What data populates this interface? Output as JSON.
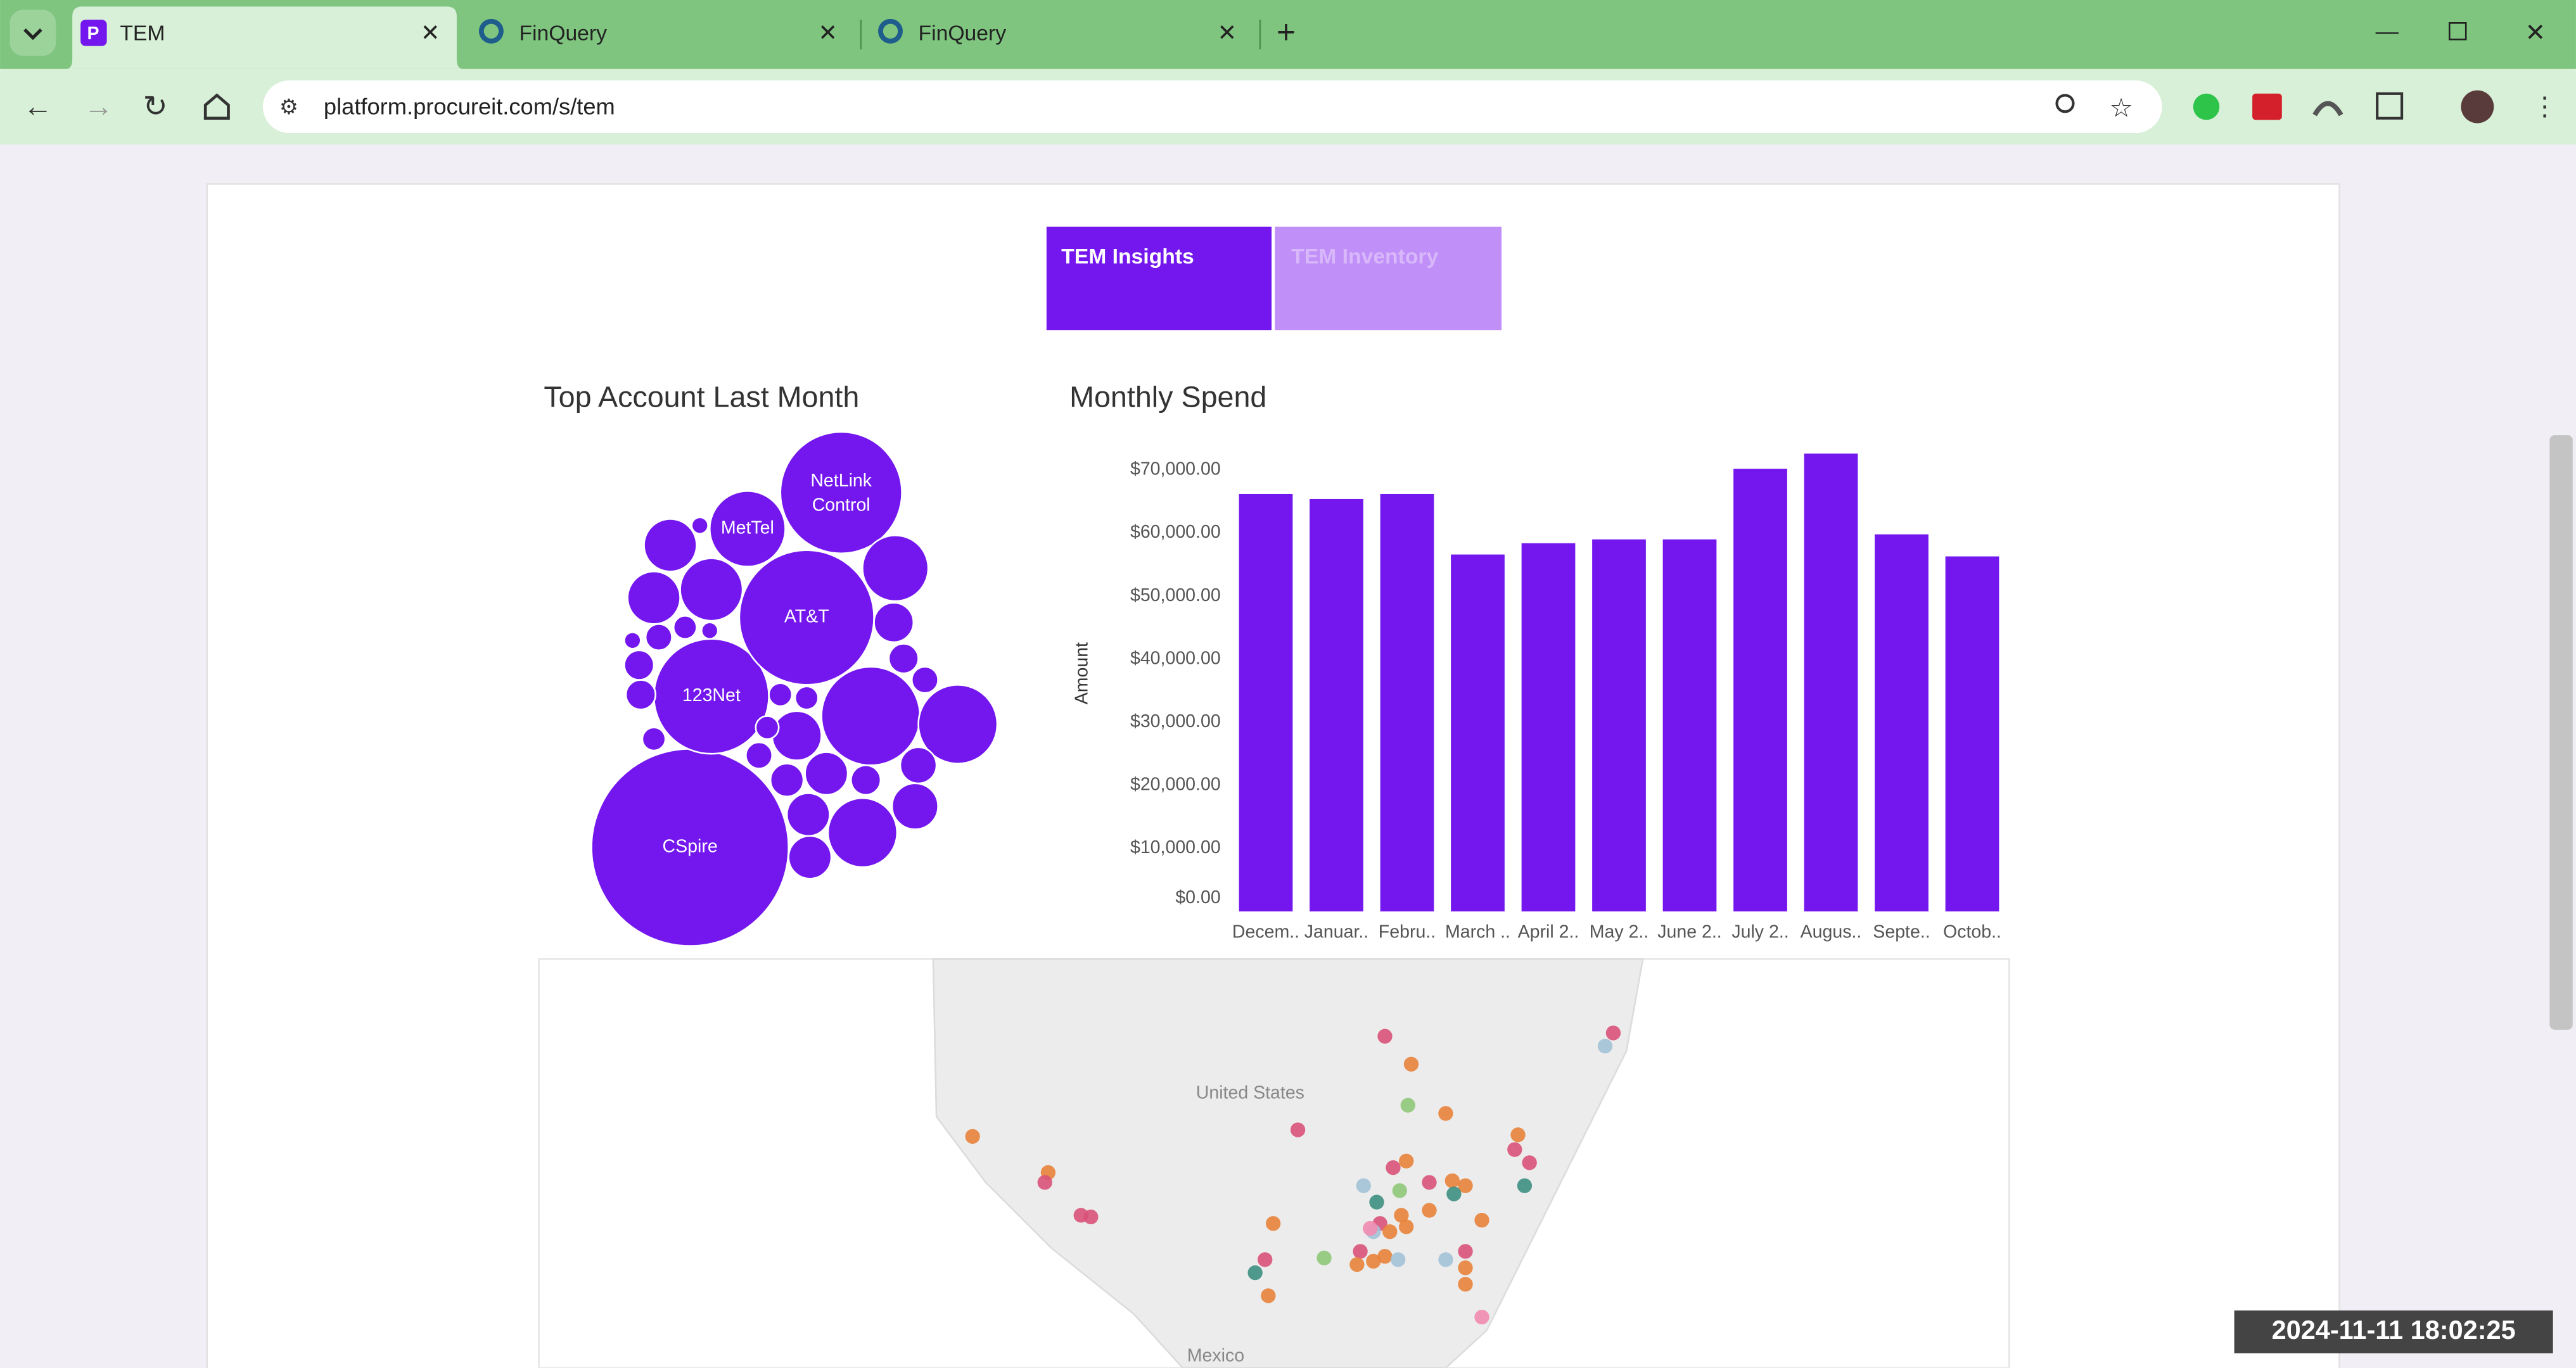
{
  "browser": {
    "tabs": [
      {
        "title": "TEM"
      },
      {
        "title": "FinQuery"
      },
      {
        "title": "FinQuery"
      }
    ],
    "url": "platform.procureit.com/s/tem"
  },
  "page_tabs": [
    "TEM Insights",
    "TEM Inventory"
  ],
  "bubble_chart": {
    "type": "bubble",
    "title": "Top Account Last Month",
    "color": "#7417ee",
    "labels": [
      "CSpire",
      "123Net",
      "AT&T",
      "NetLink Control",
      "MetTel",
      null,
      null,
      null,
      null,
      null,
      null,
      null,
      null,
      null,
      null,
      null,
      null,
      null,
      null,
      null,
      null,
      null,
      null,
      null,
      null,
      null,
      null,
      null,
      null,
      null,
      null,
      null,
      null,
      null,
      null
    ],
    "values": [
      3600,
      1225,
      1681,
      1369,
      529,
      400,
      900,
      576,
      441,
      196,
      256,
      361,
      256,
      144,
      81,
      64,
      121,
      169,
      169,
      225,
      169,
      100,
      81,
      81,
      81,
      49,
      64,
      49,
      49,
      49,
      25,
      64,
      49,
      25,
      25
    ]
  },
  "bar_chart": {
    "type": "bar",
    "title": "Monthly Spend",
    "y_label": "Amount",
    "color": "#7417ee",
    "categories": [
      "Decem..",
      "Januar..",
      "Febru..",
      "March ..",
      "April 2..",
      "May 2..",
      "June 2..",
      "July 2..",
      "Augus..",
      "Septe..",
      "Octob.."
    ],
    "values": [
      66200,
      65400,
      66200,
      56600,
      58400,
      59000,
      59000,
      70200,
      72600,
      59800,
      56300
    ],
    "ylim": [
      0,
      75000
    ],
    "yticks": [
      {
        "value": 0,
        "label": "$0.00"
      },
      {
        "value": 10000,
        "label": "$10,000.00"
      },
      {
        "value": 20000,
        "label": "$20,000.00"
      },
      {
        "value": 30000,
        "label": "$30,000.00"
      },
      {
        "value": 40000,
        "label": "$40,000.00"
      },
      {
        "value": 50000,
        "label": "$50,000.00"
      },
      {
        "value": 60000,
        "label": "$60,000.00"
      },
      {
        "value": 70000,
        "label": "$70,000.00"
      }
    ],
    "grid": false
  },
  "map": {
    "labels": [
      "United States",
      "Mexico"
    ]
  },
  "timestamp": "2024-11-11 18:02:25"
}
